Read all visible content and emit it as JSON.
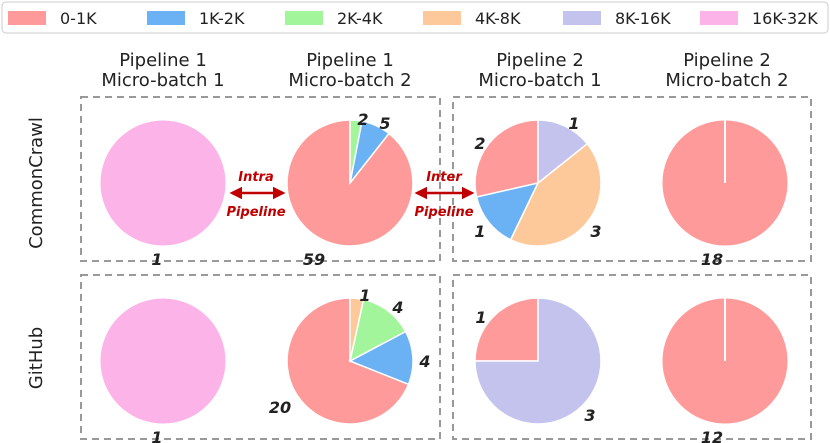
{
  "chart_data": {
    "type": "pie",
    "legend": {
      "placement": "top",
      "entries": [
        {
          "label": "0-1K",
          "color": "#ff9a9a"
        },
        {
          "label": "1K-2K",
          "color": "#6bb2f5"
        },
        {
          "label": "2K-4K",
          "color": "#a2f59a"
        },
        {
          "label": "4K-8K",
          "color": "#fdc99a"
        },
        {
          "label": "8K-16K",
          "color": "#c3c3ee"
        },
        {
          "label": "16K-32K",
          "color": "#fcb4e8"
        }
      ]
    },
    "columns": [
      {
        "line1": "Pipeline 1",
        "line2": "Micro-batch 1"
      },
      {
        "line1": "Pipeline 1",
        "line2": "Micro-batch 2"
      },
      {
        "line1": "Pipeline 2",
        "line2": "Micro-batch 1"
      },
      {
        "line1": "Pipeline 2",
        "line2": "Micro-batch 2"
      }
    ],
    "rows": [
      "CommonCrawl",
      "GitHub"
    ],
    "arrows": {
      "intra": {
        "line1": "Intra",
        "line2": "Pipeline"
      },
      "inter": {
        "line1": "Inter",
        "line2": "Pipeline"
      }
    },
    "pies": [
      {
        "row": 0,
        "col": 0,
        "slices": [
          {
            "category": "16K-32K",
            "value": 1,
            "label": "1"
          }
        ]
      },
      {
        "row": 0,
        "col": 1,
        "slices": [
          {
            "category": "0-1K",
            "value": 59,
            "label": "59"
          },
          {
            "category": "1K-2K",
            "value": 5,
            "label": "5"
          },
          {
            "category": "2K-4K",
            "value": 2,
            "label": "2"
          }
        ]
      },
      {
        "row": 0,
        "col": 2,
        "slices": [
          {
            "category": "0-1K",
            "value": 2,
            "label": "2"
          },
          {
            "category": "1K-2K",
            "value": 1,
            "label": "1"
          },
          {
            "category": "4K-8K",
            "value": 3,
            "label": "3"
          },
          {
            "category": "8K-16K",
            "value": 1,
            "label": "1"
          }
        ]
      },
      {
        "row": 0,
        "col": 3,
        "slices": [
          {
            "category": "0-1K",
            "value": 18,
            "label": "18"
          }
        ]
      },
      {
        "row": 1,
        "col": 0,
        "slices": [
          {
            "category": "16K-32K",
            "value": 1,
            "label": "1"
          }
        ]
      },
      {
        "row": 1,
        "col": 1,
        "slices": [
          {
            "category": "0-1K",
            "value": 20,
            "label": "20"
          },
          {
            "category": "1K-2K",
            "value": 4,
            "label": "4"
          },
          {
            "category": "2K-4K",
            "value": 4,
            "label": "4"
          },
          {
            "category": "4K-8K",
            "value": 1,
            "label": "1"
          }
        ]
      },
      {
        "row": 1,
        "col": 2,
        "slices": [
          {
            "category": "0-1K",
            "value": 1,
            "label": "1"
          },
          {
            "category": "8K-16K",
            "value": 3,
            "label": "3"
          }
        ]
      },
      {
        "row": 1,
        "col": 3,
        "slices": [
          {
            "category": "0-1K",
            "value": 12,
            "label": "12"
          }
        ]
      }
    ]
  }
}
